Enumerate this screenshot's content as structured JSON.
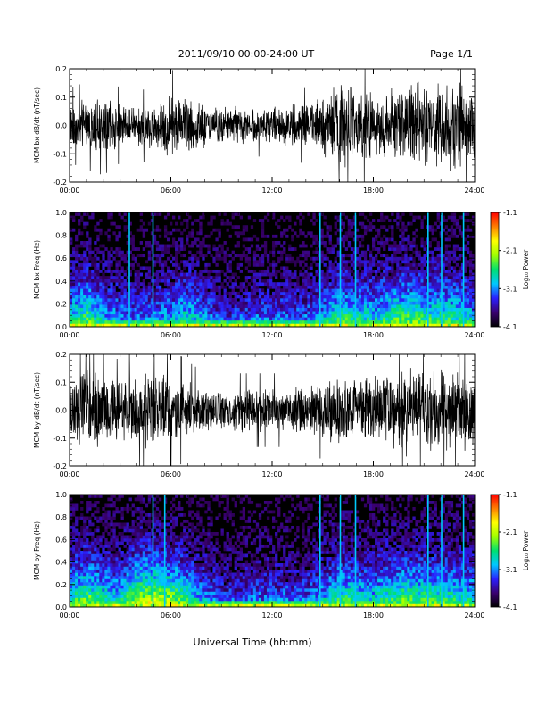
{
  "header": {
    "title": "2011/09/10  00:00-24:00 UT",
    "page": "Page 1/1"
  },
  "xlabel": "Universal Time (hh:mm)",
  "colorbar": {
    "label": "Log₁₀ Power",
    "ticks": [
      "-1.1",
      "-2.1",
      "-3.1",
      "-4.1"
    ],
    "range": [
      -4.1,
      -1.1
    ],
    "colors": [
      "#000000",
      "#3a0070",
      "#2a20ff",
      "#00c8ff",
      "#00e070",
      "#a0ff00",
      "#ffff00",
      "#ff8000",
      "#ff0000"
    ]
  },
  "chart_data": [
    {
      "type": "line",
      "ylabel": "MCM bx dB/dt (nT/sec)",
      "xlim": [
        0,
        24
      ],
      "ylim": [
        -0.2,
        0.2
      ],
      "xticks": [
        "00:00",
        "06:00",
        "12:00",
        "18:00",
        "24:00"
      ],
      "yticks": [
        "-0.2",
        "-0.1",
        "0.0",
        "0.1",
        "0.2"
      ],
      "envelope": {
        "hours": [
          0,
          1,
          2,
          3,
          4,
          5,
          6,
          7,
          8,
          9,
          10,
          11,
          12,
          13,
          14,
          15,
          16,
          17,
          18,
          19,
          20,
          21,
          22,
          23,
          24
        ],
        "amplitude": [
          0.06,
          0.07,
          0.08,
          0.06,
          0.05,
          0.07,
          0.09,
          0.08,
          0.06,
          0.06,
          0.05,
          0.05,
          0.05,
          0.06,
          0.06,
          0.08,
          0.12,
          0.1,
          0.09,
          0.1,
          0.12,
          0.11,
          0.13,
          0.12,
          0.1
        ]
      }
    },
    {
      "type": "heatmap",
      "ylabel": "MCM bx Freq (Hz)",
      "xlim": [
        0,
        24
      ],
      "ylim": [
        0.0,
        1.0
      ],
      "xticks": [
        "00:00",
        "06:00",
        "12:00",
        "18:00",
        "24:00"
      ],
      "yticks": [
        "0.0",
        "0.2",
        "0.4",
        "0.6",
        "0.8",
        "1.0"
      ],
      "zlabel": "Log₁₀ Power",
      "zlim": [
        -4.1,
        -1.1
      ],
      "activity": {
        "hours": [
          0,
          1,
          2,
          3,
          4,
          5,
          6,
          7,
          8,
          9,
          10,
          11,
          12,
          13,
          14,
          15,
          16,
          17,
          18,
          19,
          20,
          21,
          22,
          23,
          24
        ],
        "level": [
          0.5,
          0.65,
          0.45,
          0.4,
          0.35,
          0.4,
          0.45,
          0.55,
          0.4,
          0.3,
          0.3,
          0.35,
          0.35,
          0.35,
          0.35,
          0.45,
          0.6,
          0.55,
          0.5,
          0.6,
          0.65,
          0.6,
          0.6,
          0.55,
          0.5
        ]
      },
      "bright_streaks_hours": [
        3.5,
        4.9,
        14.8,
        16.0,
        16.9,
        21.2,
        22.0,
        23.3
      ]
    },
    {
      "type": "line",
      "ylabel": "MCM by dB/dt (nT/sec)",
      "xlim": [
        0,
        24
      ],
      "ylim": [
        -0.2,
        0.2
      ],
      "xticks": [
        "00:00",
        "06:00",
        "12:00",
        "18:00",
        "24:00"
      ],
      "yticks": [
        "-0.2",
        "-0.1",
        "0.0",
        "0.1",
        "0.2"
      ],
      "envelope": {
        "hours": [
          0,
          1,
          2,
          3,
          4,
          5,
          6,
          7,
          8,
          9,
          10,
          11,
          12,
          13,
          14,
          15,
          16,
          17,
          18,
          19,
          20,
          21,
          22,
          23,
          24
        ],
        "amplitude": [
          0.08,
          0.12,
          0.1,
          0.08,
          0.1,
          0.11,
          0.1,
          0.08,
          0.06,
          0.06,
          0.06,
          0.06,
          0.06,
          0.06,
          0.07,
          0.08,
          0.1,
          0.1,
          0.09,
          0.11,
          0.12,
          0.11,
          0.12,
          0.12,
          0.1
        ]
      }
    },
    {
      "type": "heatmap",
      "ylabel": "MCM by Freq (Hz)",
      "xlim": [
        0,
        24
      ],
      "ylim": [
        0.0,
        1.0
      ],
      "xticks": [
        "00:00",
        "06:00",
        "12:00",
        "18:00",
        "24:00"
      ],
      "yticks": [
        "0.0",
        "0.2",
        "0.4",
        "0.6",
        "0.8",
        "1.0"
      ],
      "zlabel": "Log₁₀ Power",
      "zlim": [
        -4.1,
        -1.1
      ],
      "activity": {
        "hours": [
          0,
          1,
          2,
          3,
          4,
          5,
          6,
          7,
          8,
          9,
          10,
          11,
          12,
          13,
          14,
          15,
          16,
          17,
          18,
          19,
          20,
          21,
          22,
          23,
          24
        ],
        "level": [
          0.55,
          0.7,
          0.55,
          0.5,
          0.75,
          0.8,
          0.75,
          0.55,
          0.4,
          0.3,
          0.3,
          0.35,
          0.35,
          0.35,
          0.35,
          0.45,
          0.6,
          0.55,
          0.5,
          0.6,
          0.65,
          0.6,
          0.6,
          0.55,
          0.5
        ]
      },
      "bright_streaks_hours": [
        4.9,
        5.6,
        14.8,
        16.0,
        16.9,
        21.2,
        22.0,
        23.3
      ]
    }
  ]
}
